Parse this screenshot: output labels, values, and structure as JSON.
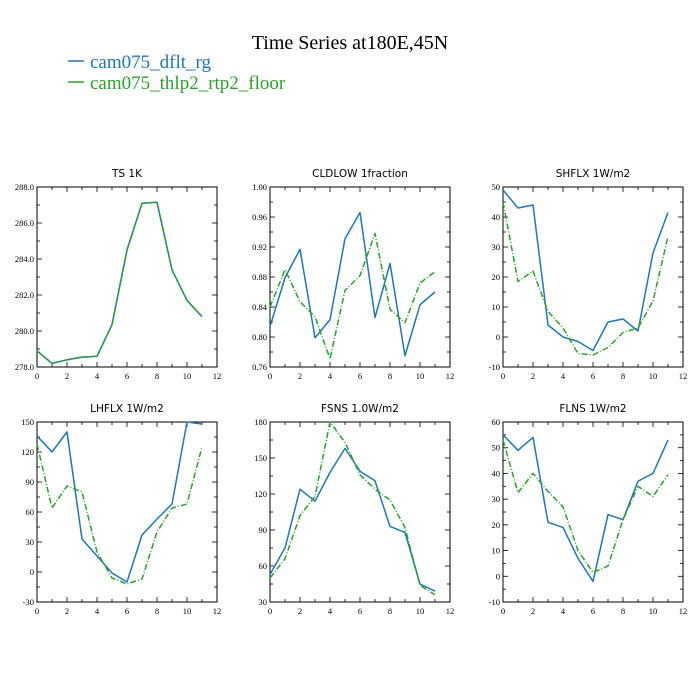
{
  "title": "Time Series at180E,45N",
  "legend": [
    {
      "name": "cam075_dflt_rg",
      "color": "#1f77b4",
      "dash": "solid"
    },
    {
      "name": "cam075_thlp2_rtp2_floor",
      "color": "#2ca02c",
      "dash": "dashdot"
    }
  ],
  "chart_data": [
    {
      "type": "line",
      "title": "TS   1K",
      "x": [
        0,
        1,
        2,
        3,
        4,
        5,
        6,
        7,
        8,
        9,
        10,
        11
      ],
      "xlim": [
        0,
        12
      ],
      "xticks": [
        0,
        2,
        4,
        6,
        8,
        10,
        12
      ],
      "ylim": [
        278.0,
        288.0
      ],
      "yticks": [
        "278.0",
        "280.0",
        "282.0",
        "284.0",
        "286.0",
        "288.0"
      ],
      "series": [
        {
          "name": "cam075_dflt_rg",
          "values": [
            278.9,
            278.2,
            278.4,
            278.55,
            278.6,
            280.35,
            284.5,
            287.1,
            287.15,
            283.4,
            281.7,
            280.8
          ]
        },
        {
          "name": "cam075_thlp2_rtp2_floor",
          "values": [
            278.9,
            278.2,
            278.4,
            278.55,
            278.6,
            280.35,
            284.5,
            287.1,
            287.15,
            283.4,
            281.7,
            280.8
          ]
        }
      ]
    },
    {
      "type": "line",
      "title": "CLDLOW   1fraction",
      "x": [
        0,
        1,
        2,
        3,
        4,
        5,
        6,
        7,
        8,
        9,
        10,
        11
      ],
      "xlim": [
        0,
        12
      ],
      "xticks": [
        0,
        2,
        4,
        6,
        8,
        10,
        12
      ],
      "ylim": [
        0.76,
        1.0
      ],
      "yticks": [
        "0.76",
        "0.80",
        "0.84",
        "0.88",
        "0.92",
        "0.96",
        "1.00"
      ],
      "series": [
        {
          "name": "cam075_dflt_rg",
          "values": [
            0.814,
            0.879,
            0.917,
            0.799,
            0.823,
            0.931,
            0.966,
            0.826,
            0.898,
            0.775,
            0.843,
            0.86
          ]
        },
        {
          "name": "cam075_thlp2_rtp2_floor",
          "values": [
            0.84,
            0.89,
            0.847,
            0.827,
            0.771,
            0.862,
            0.882,
            0.938,
            0.837,
            0.819,
            0.872,
            0.887
          ]
        }
      ]
    },
    {
      "type": "line",
      "title": "SHFLX   1W/m2",
      "x": [
        0,
        1,
        2,
        3,
        4,
        5,
        6,
        7,
        8,
        9,
        10,
        11
      ],
      "xlim": [
        0,
        12
      ],
      "xticks": [
        0,
        2,
        4,
        6,
        8,
        10,
        12
      ],
      "ylim": [
        -10,
        50
      ],
      "yticks": [
        "-10",
        "0",
        "10",
        "20",
        "30",
        "40",
        "50"
      ],
      "series": [
        {
          "name": "cam075_dflt_rg",
          "values": [
            49,
            43,
            44,
            4,
            0,
            -1.5,
            -4.5,
            5,
            6,
            2,
            28,
            41.5
          ]
        },
        {
          "name": "cam075_thlp2_rtp2_floor",
          "values": [
            45,
            18.5,
            22,
            8.5,
            3,
            -5.5,
            -6,
            -3.5,
            1.5,
            3,
            12,
            33.5
          ]
        }
      ]
    },
    {
      "type": "line",
      "title": "LHFLX   1W/m2",
      "x": [
        0,
        1,
        2,
        3,
        4,
        5,
        6,
        7,
        8,
        9,
        10,
        11
      ],
      "xlim": [
        0,
        12
      ],
      "xticks": [
        0,
        2,
        4,
        6,
        8,
        10,
        12
      ],
      "ylim": [
        -30,
        150
      ],
      "yticks": [
        "-30",
        "0",
        "30",
        "60",
        "90",
        "120",
        "150"
      ],
      "series": [
        {
          "name": "cam075_dflt_rg",
          "values": [
            136,
            120,
            140,
            33,
            16,
            -1,
            -10,
            37,
            53,
            68,
            150,
            148
          ]
        },
        {
          "name": "cam075_thlp2_rtp2_floor",
          "values": [
            128,
            64,
            86,
            80,
            20,
            -6,
            -12,
            -7,
            40,
            64,
            68,
            125
          ]
        }
      ]
    },
    {
      "type": "line",
      "title": "FSNS   1.0W/m2",
      "x": [
        0,
        1,
        2,
        3,
        4,
        5,
        6,
        7,
        8,
        9,
        10,
        11
      ],
      "xlim": [
        0,
        12
      ],
      "xticks": [
        0,
        2,
        4,
        6,
        8,
        10,
        12
      ],
      "ylim": [
        30,
        180
      ],
      "yticks": [
        "30",
        "60",
        "90",
        "120",
        "150",
        "180"
      ],
      "series": [
        {
          "name": "cam075_dflt_rg",
          "values": [
            53,
            75,
            124,
            114,
            138,
            158,
            139,
            131,
            93,
            88,
            45,
            39
          ]
        },
        {
          "name": "cam075_thlp2_rtp2_floor",
          "values": [
            50,
            66,
            102,
            118,
            180,
            163,
            136,
            124,
            115,
            92,
            44,
            36
          ]
        }
      ]
    },
    {
      "type": "line",
      "title": "FLNS   1W/m2",
      "x": [
        0,
        1,
        2,
        3,
        4,
        5,
        6,
        7,
        8,
        9,
        10,
        11
      ],
      "xlim": [
        0,
        12
      ],
      "xticks": [
        0,
        2,
        4,
        6,
        8,
        10,
        12
      ],
      "ylim": [
        -10,
        60
      ],
      "yticks": [
        "-10",
        "0",
        "10",
        "20",
        "30",
        "40",
        "50",
        "60"
      ],
      "series": [
        {
          "name": "cam075_dflt_rg",
          "values": [
            55,
            49,
            54,
            21,
            19,
            7,
            -2,
            24,
            22,
            37,
            40,
            53
          ]
        },
        {
          "name": "cam075_thlp2_rtp2_floor",
          "values": [
            53,
            32.5,
            40,
            33,
            27,
            10,
            1.5,
            4,
            22,
            35,
            31,
            39.5
          ]
        }
      ]
    }
  ]
}
